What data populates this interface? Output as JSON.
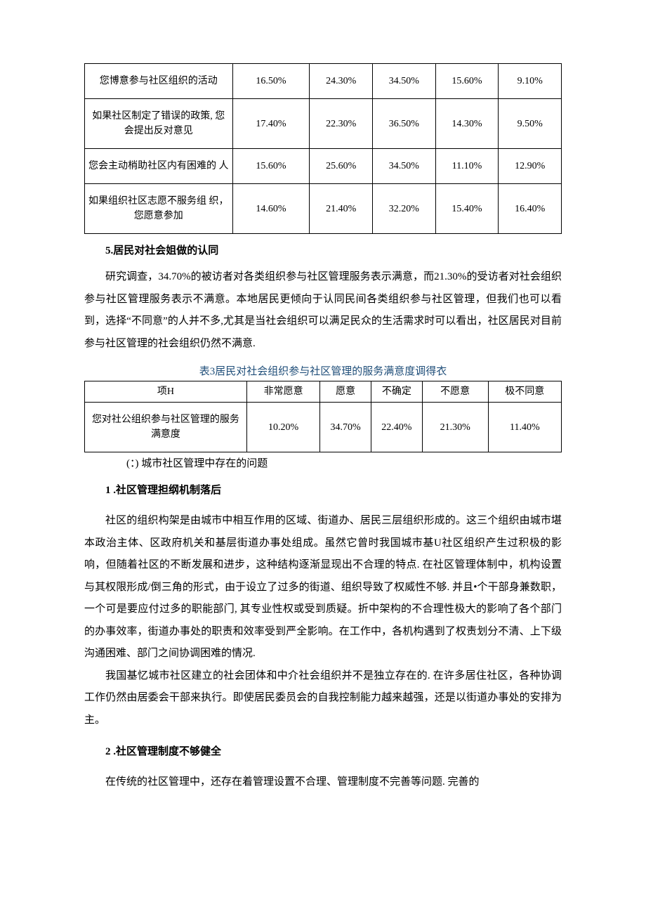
{
  "table1": {
    "rows": [
      {
        "label": "您博意参与社区组织的活动",
        "c1": "16.50%",
        "c2": "24.30%",
        "c3": "34.50%",
        "c4": "15.60%",
        "c5": "9.10%"
      },
      {
        "label": "如果社区制定了错误的政策,\n您会提出反对意见",
        "c1": "17.40%",
        "c2": "22.30%",
        "c3": "36.50%",
        "c4": "14.30%",
        "c5": "9.50%"
      },
      {
        "label": "您会主动梢助社区内有困难的\n人",
        "c1": "15.60%",
        "c2": "25.60%",
        "c3": "34.50%",
        "c4": "11.10%",
        "c5": "12.90%"
      },
      {
        "label": "如果组织社区志愿不服务组\n织，您愿意参加",
        "c1": "14.60%",
        "c2": "21.40%",
        "c3": "32.20%",
        "c4": "15.40%",
        "c5": "16.40%"
      }
    ]
  },
  "section5_title": "5.居民对社会姐做的认同",
  "section5_para": "研究调查，34.70%的被访者对各类组织参与社区管理服务表示满意，而21.30%的受访者对社会组织参与社区管理服务表示不满意。本地居民更倾向于认同民间各类组织参与社区管理，但我们也可以看到，选择“不同意”的人并不多,尤其是当社会组织可以满足民众的生活需求时可以看出，社区居民对目前参与社区管理的社会组织仍然不满意.",
  "table2": {
    "caption": "表3居民对社会组织参与社区管理的服务满意度调得衣",
    "caption_color": "#1f4e79",
    "headers": [
      "项H",
      "非常愿意",
      "愿意",
      "不确定",
      "不愿意",
      "极不同意"
    ],
    "row": {
      "label": "您对社公组织参与社区管理的服务\n满意度",
      "c1": "10.20%",
      "c2": "34.70%",
      "c3": "22.40%",
      "c4": "21.30%",
      "c5": "11.40%"
    }
  },
  "subsection_label": "(：) 城市社区管理中存在的问题",
  "heading1": "1 .社区管理担纲机制落后",
  "para1": "社区的组织构架是由城市中相互作用的区域、街道办、居民三层组织形成的。这三个组织由城市堪本政治主体、区政府机关和基层街道办事处组成。虽然它曾时我国城市基U社区组织产生过积极的影响，但随着社区的不断发展和进步，这种结构逐渐显现出不合理的特点. 在社区管理体制中，机构设置与其权限形成/倒三角的形式，由于设立了过多的街道、组织导致了权威性不够. 并且•个干部身兼数职，一个可是要应付过多的职能部门, 其专业性权或受到质疑。折中架构的不合理性极大的影响了各个部门的办事效率，街道办事处的职责和效率受到严全影响。在工作中，各机构遇到了权责划分不清、上下级沟通困难、部门之间协调困难的情况.",
  "para2": "我国基忆城市社区建立的社会团体和中介社会组织并不是独立存在的. 在许多居住社区，各种协调工作仍然由居委会干部来执行。即使居民委员会的自我控制能力越来越强，还是以街道办事处的安排为主。",
  "heading2": "2 .社区管理制度不够健全",
  "para3": "在传统的社区管理中，还存在着管理设置不合理、管理制度不完善等问题. 完善的"
}
